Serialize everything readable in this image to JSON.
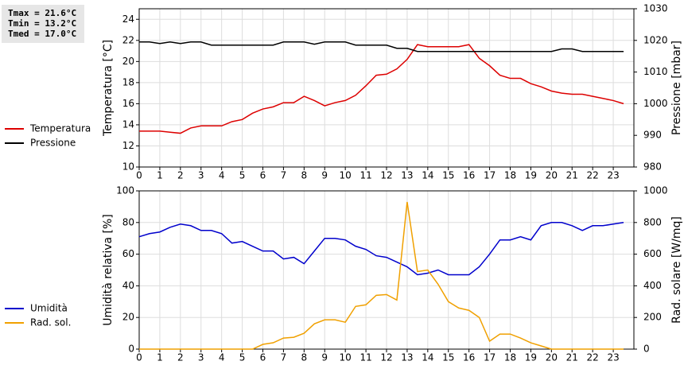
{
  "stats": [
    "Tmax = 21.6°C",
    "Tmin = 13.2°C",
    "Tmed = 17.0°C"
  ],
  "chart_data": [
    {
      "type": "line",
      "ylabel": "Temperatura [°C]",
      "y2label": "Pressione [mbar]",
      "x": [
        0,
        0.5,
        1,
        1.5,
        2,
        2.5,
        3,
        3.5,
        4,
        4.5,
        5,
        5.5,
        6,
        6.5,
        7,
        7.5,
        8,
        8.5,
        9,
        9.5,
        10,
        10.5,
        11,
        11.5,
        12,
        12.5,
        13,
        13.5,
        14,
        14.5,
        15,
        15.5,
        16,
        16.5,
        17,
        17.5,
        18,
        18.5,
        19,
        19.5,
        20,
        20.5,
        21,
        21.5,
        22,
        22.5,
        23,
        23.5
      ],
      "xlim": [
        0,
        24
      ],
      "xticks": [
        0,
        1,
        2,
        3,
        4,
        5,
        6,
        7,
        8,
        9,
        10,
        11,
        12,
        13,
        14,
        15,
        16,
        17,
        18,
        19,
        20,
        21,
        22,
        23
      ],
      "ylim": [
        10,
        25
      ],
      "yticks": [
        10,
        12,
        14,
        16,
        18,
        20,
        22,
        24
      ],
      "y2lim": [
        980,
        1030
      ],
      "y2ticks": [
        980,
        990,
        1000,
        1010,
        1020,
        1030
      ],
      "grid": true,
      "series": [
        {
          "name": "Temperatura",
          "color": "#dd0000",
          "values": [
            13.4,
            13.4,
            13.4,
            13.3,
            13.2,
            13.7,
            13.9,
            13.9,
            13.9,
            14.3,
            14.5,
            15.1,
            15.5,
            15.7,
            16.1,
            16.1,
            16.7,
            16.3,
            15.8,
            16.1,
            16.3,
            16.8,
            17.7,
            18.7,
            18.8,
            19.3,
            20.2,
            21.6,
            21.4,
            21.4,
            21.4,
            21.4,
            21.6,
            20.3,
            19.6,
            18.7,
            18.4,
            18.4,
            17.9,
            17.6,
            17.2,
            17.0,
            16.9,
            16.9,
            16.7,
            16.5,
            16.3,
            16.0
          ]
        },
        {
          "name": "Pressione",
          "color": "#000000",
          "axis": "y2",
          "values": [
            1019.5,
            1019.5,
            1019,
            1019.5,
            1019,
            1019.5,
            1019.5,
            1018.5,
            1018.5,
            1018.5,
            1018.5,
            1018.5,
            1018.5,
            1018.5,
            1019.5,
            1019.5,
            1019.5,
            1018.8,
            1019.5,
            1019.5,
            1019.5,
            1018.5,
            1018.5,
            1018.5,
            1018.5,
            1017.5,
            1017.5,
            1016.5,
            1016.5,
            1016.5,
            1016.5,
            1016.5,
            1016.5,
            1016.5,
            1016.5,
            1016.5,
            1016.5,
            1016.5,
            1016.5,
            1016.5,
            1016.5,
            1017.3,
            1017.3,
            1016.5,
            1016.5,
            1016.5,
            1016.5,
            1016.5
          ]
        }
      ]
    },
    {
      "type": "line",
      "ylabel": "Umidità relativa [%]",
      "y2label": "Rad. solare [W/mq]",
      "x": [
        0,
        0.5,
        1,
        1.5,
        2,
        2.5,
        3,
        3.5,
        4,
        4.5,
        5,
        5.5,
        6,
        6.5,
        7,
        7.5,
        8,
        8.5,
        9,
        9.5,
        10,
        10.5,
        11,
        11.5,
        12,
        12.5,
        13,
        13.5,
        14,
        14.5,
        15,
        15.5,
        16,
        16.5,
        17,
        17.5,
        18,
        18.5,
        19,
        19.5,
        20,
        20.5,
        21,
        21.5,
        22,
        22.5,
        23,
        23.5
      ],
      "xlim": [
        0,
        24
      ],
      "xticks": [
        0,
        1,
        2,
        3,
        4,
        5,
        6,
        7,
        8,
        9,
        10,
        11,
        12,
        13,
        14,
        15,
        16,
        17,
        18,
        19,
        20,
        21,
        22,
        23
      ],
      "ylim": [
        0,
        100
      ],
      "yticks": [
        0,
        20,
        40,
        60,
        80,
        100
      ],
      "y2lim": [
        0,
        1000
      ],
      "y2ticks": [
        0,
        200,
        400,
        600,
        800,
        1000
      ],
      "grid": true,
      "series": [
        {
          "name": "Umidità",
          "color": "#0000cc",
          "values": [
            71,
            73,
            74,
            77,
            79,
            78,
            75,
            75,
            73,
            67,
            68,
            65,
            62,
            62,
            57,
            58,
            54,
            62,
            70,
            70,
            69,
            65,
            63,
            59,
            58,
            55,
            52,
            47,
            48,
            50,
            47,
            47,
            47,
            52,
            60,
            69,
            69,
            71,
            69,
            78,
            80,
            80,
            78,
            75,
            78,
            78,
            79,
            80
          ]
        },
        {
          "name": "Rad. sol.",
          "color": "#f0a000",
          "axis": "y2",
          "values": [
            0,
            0,
            0,
            0,
            0,
            0,
            0,
            0,
            0,
            0,
            0,
            0,
            30,
            40,
            70,
            75,
            100,
            160,
            185,
            185,
            170,
            270,
            280,
            340,
            345,
            310,
            930,
            490,
            500,
            410,
            300,
            260,
            245,
            200,
            50,
            95,
            95,
            70,
            40,
            20,
            0,
            0,
            0,
            0,
            0,
            0,
            0,
            0
          ]
        }
      ]
    }
  ]
}
